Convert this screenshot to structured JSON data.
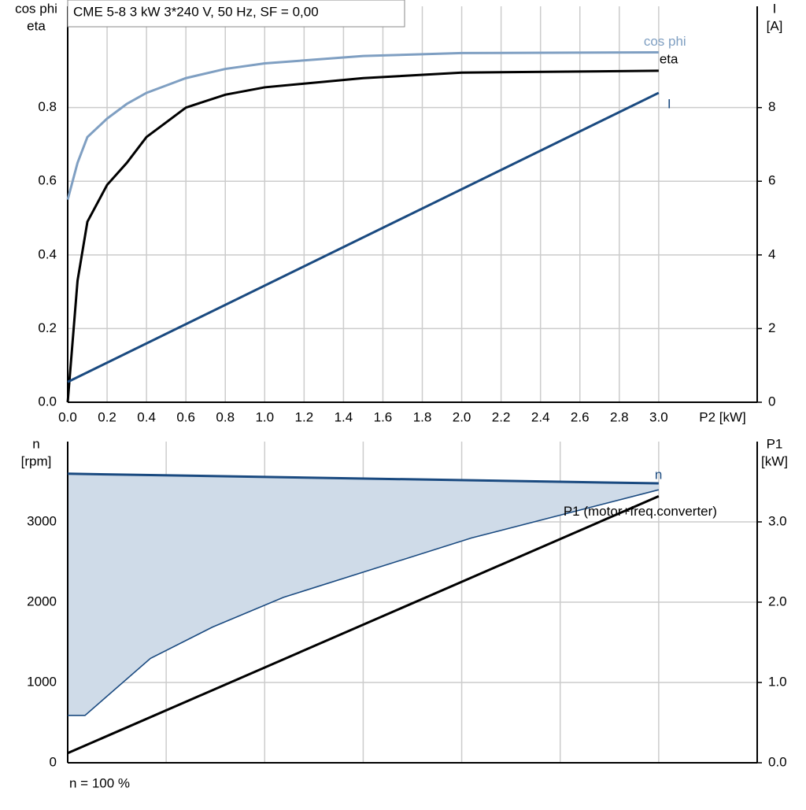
{
  "chart_data": [
    {
      "type": "line",
      "title": "CME 5-8   3 kW   3*240 V, 50 Hz, SF = 0,00",
      "xlabel": "P2 [kW]",
      "ylabel": [
        "cos phi",
        "eta"
      ],
      "y2label": [
        "I",
        "[A]"
      ],
      "xlim": [
        0,
        3.5
      ],
      "xtick_labels": true,
      "xticks": [
        {
          "value": 0,
          "label": "0.0"
        },
        0.2,
        0.4,
        0.6,
        0.8,
        {
          "value": 1,
          "label": "1.0"
        },
        1.2,
        1.4,
        1.6,
        1.8,
        {
          "value": 2,
          "label": "2.0"
        },
        2.2,
        2.4,
        2.6,
        2.8,
        {
          "value": 3,
          "label": "3.0"
        }
      ],
      "ylim": [
        0,
        1.075
      ],
      "yticks": [
        {
          "value": 0,
          "label": "0.0"
        },
        0.2,
        0.4,
        0.6,
        0.8
      ],
      "y2lim": [
        0,
        10.75
      ],
      "y2ticks": [
        0,
        2,
        4,
        6,
        8
      ],
      "grid": true,
      "series": [
        {
          "name": "cos phi",
          "color": "#7f9fc2",
          "x": [
            0,
            0.05,
            0.1,
            0.2,
            0.3,
            0.4,
            0.5,
            0.6,
            0.8,
            1.0,
            1.5,
            2.0,
            3.0
          ],
          "values": [
            0.55,
            0.65,
            0.72,
            0.77,
            0.81,
            0.84,
            0.86,
            0.88,
            0.905,
            0.92,
            0.94,
            0.948,
            0.95
          ]
        },
        {
          "name": "eta",
          "color": "#000000",
          "x": [
            0,
            0.05,
            0.1,
            0.2,
            0.3,
            0.4,
            0.5,
            0.6,
            0.8,
            1.0,
            1.5,
            2.0,
            3.0
          ],
          "values": [
            0,
            0.33,
            0.49,
            0.59,
            0.65,
            0.72,
            0.76,
            0.8,
            0.835,
            0.855,
            0.88,
            0.895,
            0.9
          ]
        },
        {
          "name": "I",
          "color": "#1a4a80",
          "axis": "y2",
          "x": [
            0,
            3.0
          ],
          "values": [
            0.55,
            8.4
          ]
        }
      ]
    },
    {
      "type": "line",
      "ylabel": [
        "n",
        "[rpm]"
      ],
      "y2label": [
        "P1",
        "[kW]"
      ],
      "xlim": [
        0,
        3.5
      ],
      "xtick_labels": false,
      "xticks": [
        0,
        0.5,
        1,
        1.5,
        2,
        2.5,
        3
      ],
      "ylim": [
        0,
        4000
      ],
      "yticks": [
        0,
        1000,
        2000,
        3000
      ],
      "y2lim": [
        0,
        4.0
      ],
      "y2ticks": [
        {
          "value": 0,
          "label": "0.0"
        },
        {
          "value": 1,
          "label": "1.0"
        },
        {
          "value": 2,
          "label": "2.0"
        },
        {
          "value": 3,
          "label": "3.0"
        }
      ],
      "grid": true,
      "fill": "#cfdbe8",
      "series": [
        {
          "name": "n",
          "color": "#1a4a80",
          "x": [
            0,
            3.0
          ],
          "values": [
            3600,
            3480
          ]
        },
        {
          "color": "#1a4a80",
          "x": [
            0,
            0.088,
            0.42,
            0.735,
            1.095,
            2.05,
            3.0
          ],
          "values": [
            590,
            590,
            1300,
            1690,
            2060,
            2800,
            3400
          ]
        },
        {
          "name": "P1 (motor+freq.converter)",
          "color": "#000000",
          "axis": "y2",
          "x": [
            0,
            3.0
          ],
          "values": [
            0.12,
            3.32
          ]
        }
      ]
    }
  ],
  "footer": "n = 100 %"
}
